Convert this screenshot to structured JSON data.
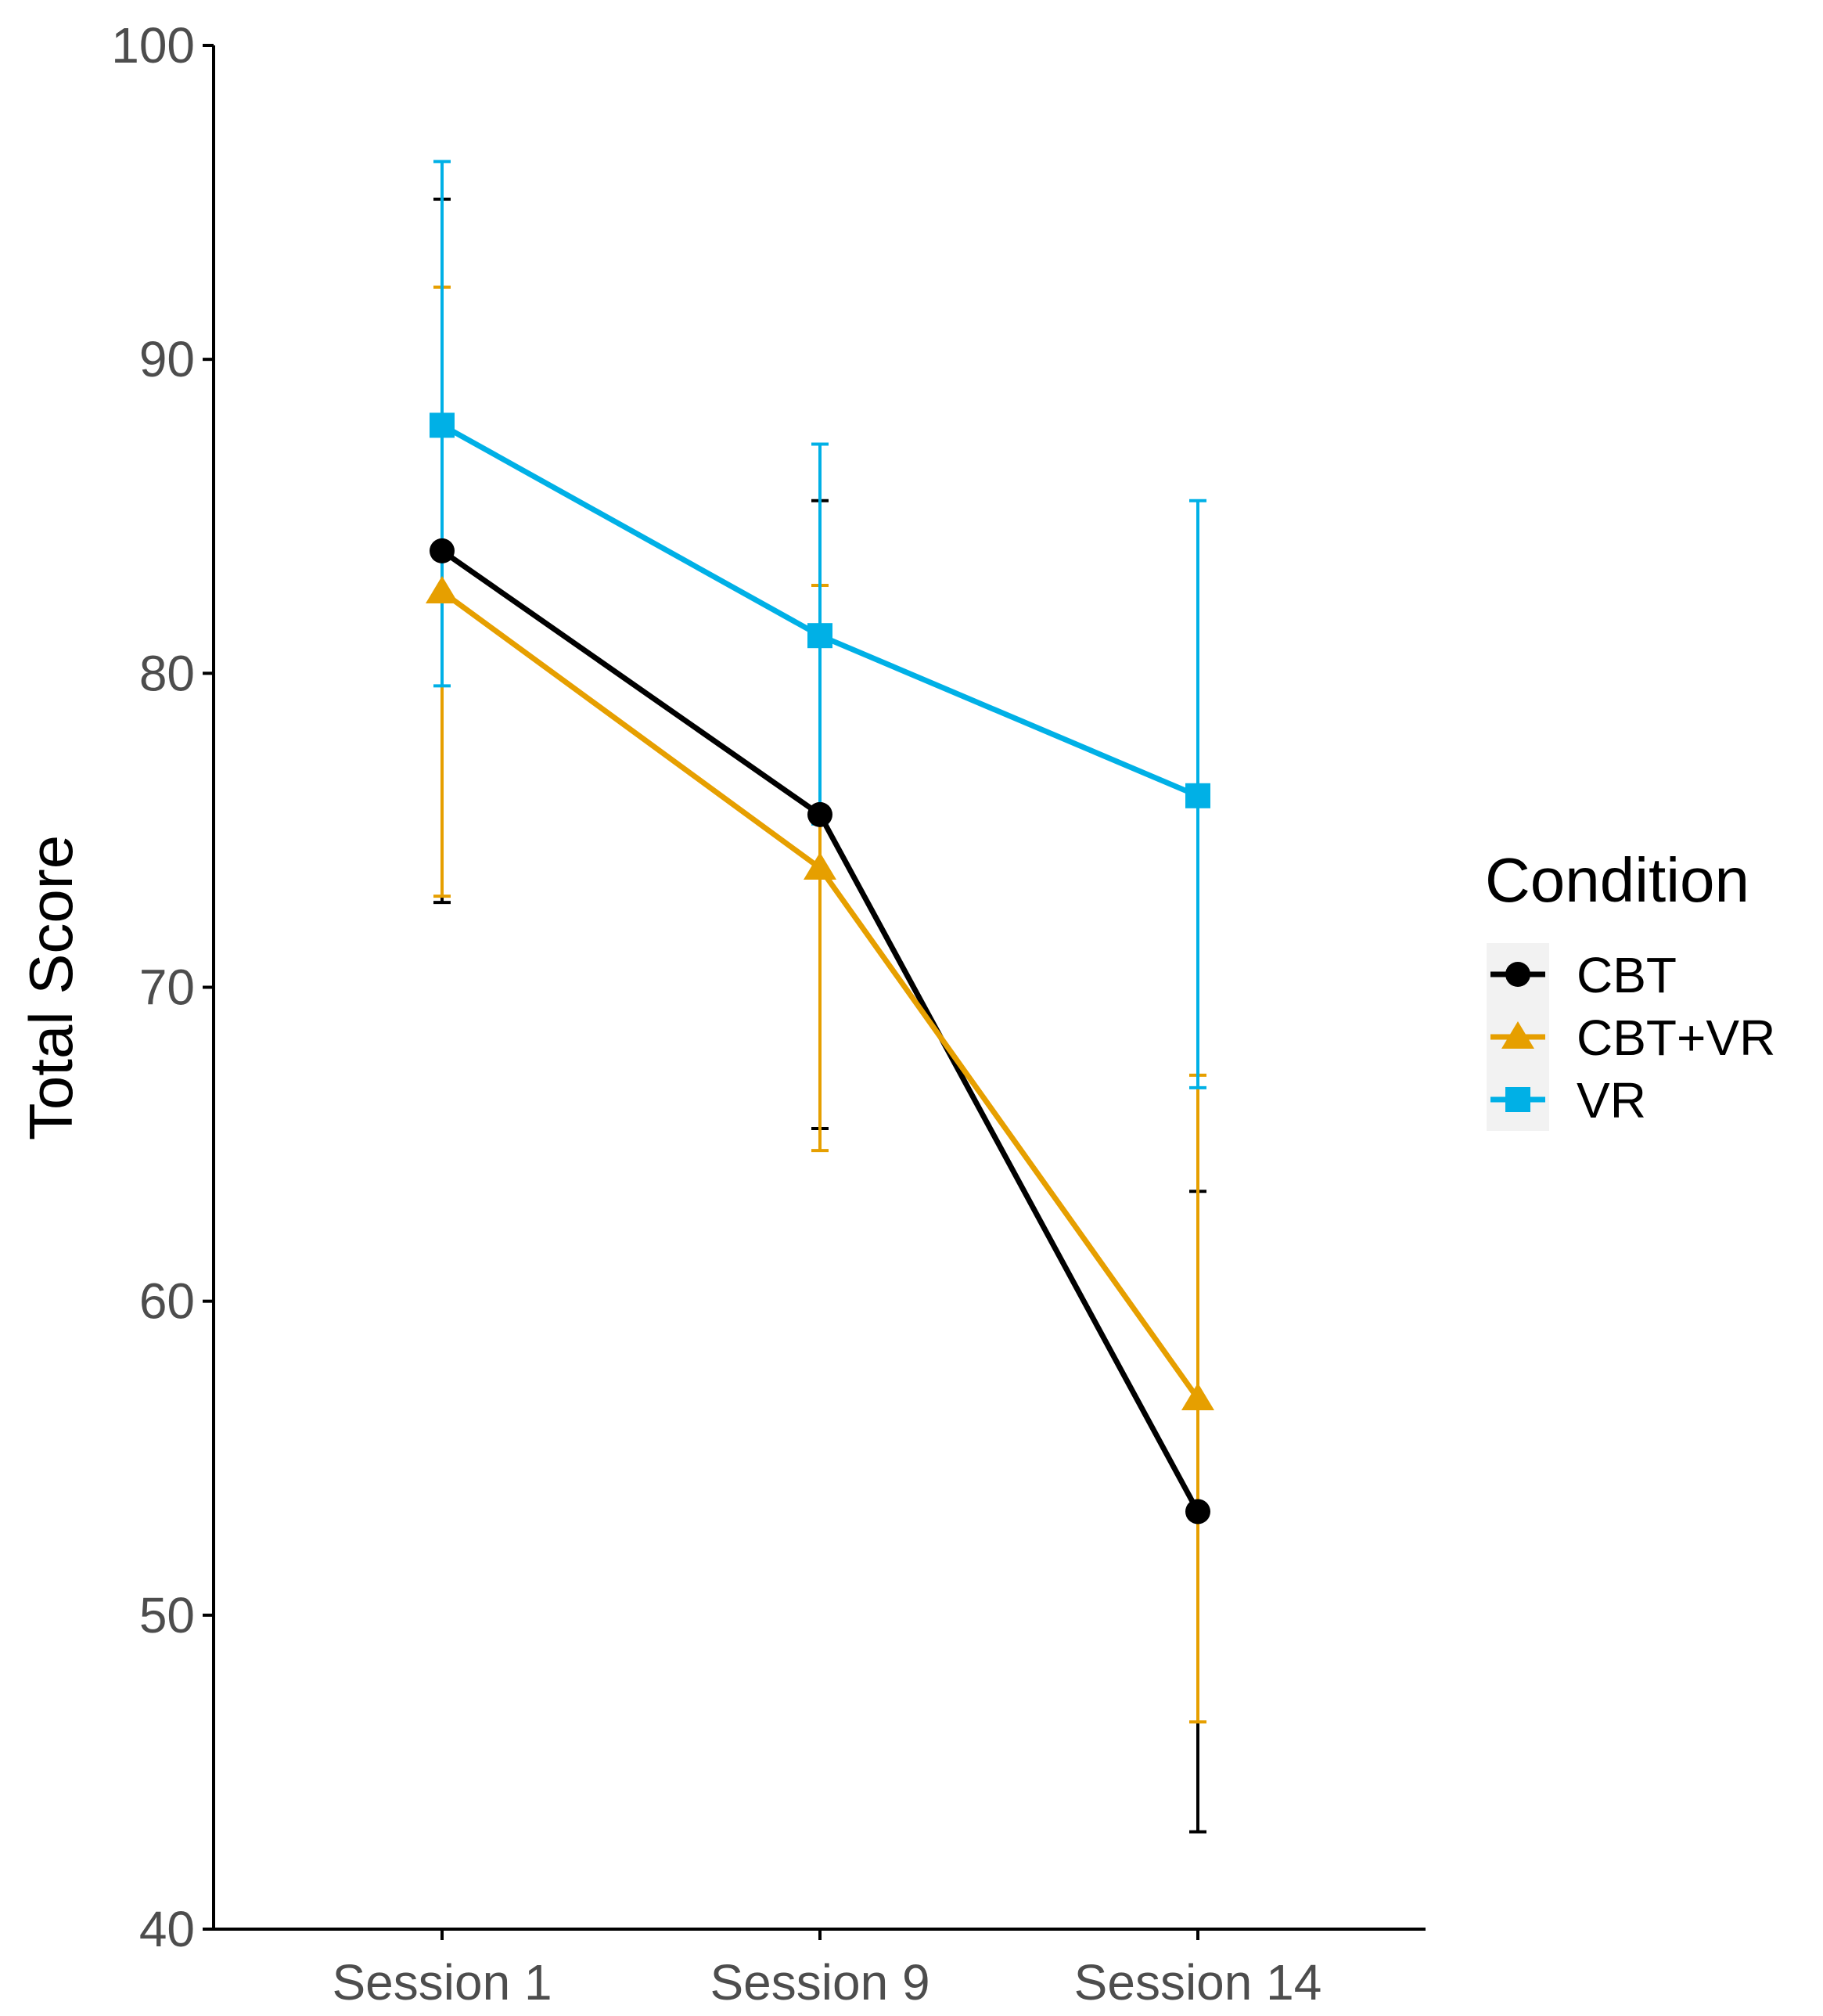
{
  "chart_data": {
    "type": "line",
    "title": "",
    "xlabel": "",
    "ylabel": "Total Score",
    "ylim": [
      40,
      100
    ],
    "yticks": [
      40,
      50,
      60,
      70,
      80,
      90,
      100
    ],
    "categories": [
      "Session 1",
      "Session 9",
      "Session 14"
    ],
    "grid": false,
    "legend": {
      "title": "Condition",
      "position": "right"
    },
    "series": [
      {
        "name": "CBT",
        "color": "#000000",
        "marker": "circle",
        "values": [
          83.9,
          75.5,
          53.3
        ],
        "error_low": [
          72.7,
          65.5,
          43.1
        ],
        "error_high": [
          95.1,
          85.5,
          63.5
        ]
      },
      {
        "name": "CBT+VR",
        "color": "#E69F00",
        "marker": "triangle",
        "values": [
          82.6,
          73.8,
          56.9
        ],
        "error_low": [
          72.9,
          64.8,
          46.6
        ],
        "error_high": [
          92.3,
          82.8,
          67.2
        ]
      },
      {
        "name": "VR",
        "color": "#00B0E6",
        "marker": "square",
        "values": [
          87.9,
          81.2,
          76.1
        ],
        "error_low": [
          79.6,
          75.2,
          66.8
        ],
        "error_high": [
          96.3,
          87.3,
          85.5
        ]
      }
    ]
  }
}
